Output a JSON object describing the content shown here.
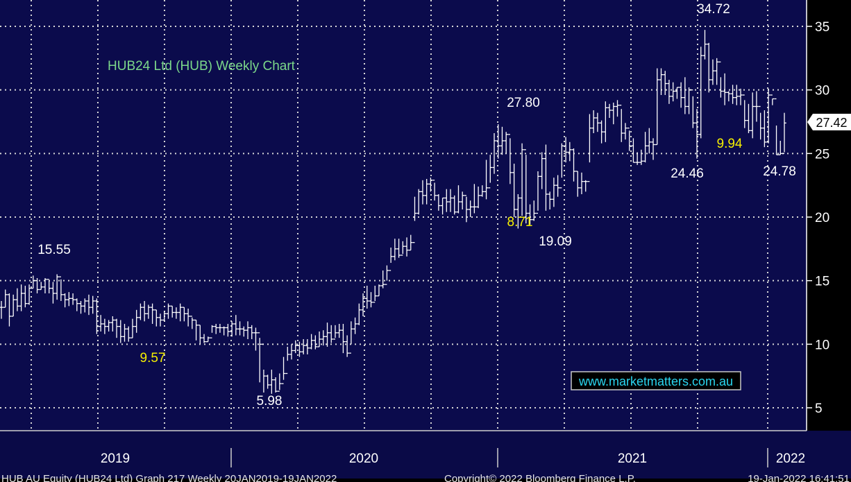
{
  "chart_data": {
    "type": "ohlc",
    "title": "HUB24 Ltd (HUB) Weekly Chart",
    "watermark": "www.marketmatters.com.au",
    "footer_left": "HUB AU Equity (HUB24 Ltd) Graph 217 Weekly 20JAN2019-19JAN2022",
    "footer_mid": "Copyright© 2022 Bloomberg Finance L.P.",
    "footer_right": "19-Jan-2022 16:41:51",
    "y_axis": {
      "min": 3.5,
      "max": 36.5,
      "ticks": [
        5,
        10,
        15,
        20,
        25,
        30,
        35
      ],
      "side": "right"
    },
    "x_axis": {
      "labels": [
        "2019",
        "2020",
        "2021",
        "2022"
      ]
    },
    "last_price": "27.42",
    "annotations": [
      {
        "text": "15.55",
        "color": "white"
      },
      {
        "text": "9.57",
        "color": "yellow"
      },
      {
        "text": "5.98",
        "color": "white"
      },
      {
        "text": "27.80",
        "color": "white"
      },
      {
        "text": "8.71",
        "color": "yellow"
      },
      {
        "text": "19.09",
        "color": "white"
      },
      {
        "text": "24.46",
        "color": "white"
      },
      {
        "text": "34.72",
        "color": "white"
      },
      {
        "text": "9.94",
        "color": "yellow"
      },
      {
        "text": "24.78",
        "color": "white"
      }
    ],
    "closes": [
      12.9,
      13.9,
      12.2,
      13.5,
      13.0,
      14.0,
      13.2,
      14.4,
      15.0,
      14.3,
      14.5,
      15.1,
      14.4,
      14.0,
      15.3,
      13.9,
      13.5,
      13.6,
      13.5,
      13.2,
      13.0,
      13.4,
      12.9,
      13.4,
      11.4,
      11.6,
      11.4,
      11.7,
      11.9,
      11.4,
      10.6,
      11.2,
      10.5,
      11.4,
      12.1,
      12.9,
      12.4,
      12.9,
      12.7,
      12.1,
      11.9,
      12.4,
      13.0,
      12.5,
      12.5,
      12.9,
      12.4,
      12.2,
      11.9,
      11.5,
      10.5,
      10.2,
      10.5,
      11.4,
      11.3,
      11.3,
      11.3,
      11.0,
      11.6,
      11.2,
      11.2,
      11.1,
      11.3,
      10.9,
      10.9,
      10.0,
      7.5,
      6.8,
      7.2,
      6.3,
      6.9,
      7.7,
      9.2,
      9.5,
      9.9,
      9.4,
      9.9,
      9.7,
      10.3,
      9.8,
      10.4,
      10.6,
      10.9,
      10.4,
      10.9,
      11.1,
      10.2,
      9.3,
      11.2,
      11.6,
      12.7,
      13.6,
      13.4,
      13.3,
      13.8,
      14.6,
      14.7,
      15.8,
      16.9,
      17.5,
      17.0,
      17.7,
      17.4,
      18.0,
      20.3,
      22.0,
      21.7,
      22.6,
      22.9,
      21.7,
      20.9,
      21.5,
      21.2,
      21.5,
      20.4,
      21.2,
      21.7,
      20.6,
      20.8,
      20.8,
      21.7,
      22.0,
      22.3,
      23.9,
      26.0,
      25.6,
      26.0,
      26.5,
      23.5,
      20.6,
      21.5,
      25.3,
      20.3,
      19.8,
      20.3,
      23.2,
      24.6,
      21.8,
      21.4,
      22.5,
      22.3,
      25.6,
      25.1,
      25.3,
      23.6,
      22.3,
      22.8,
      22.8,
      27.0,
      27.8,
      27.4,
      26.7,
      28.6,
      28.4,
      28.7,
      28.8,
      26.6,
      27.0,
      25.6,
      24.3,
      24.3,
      24.4,
      25.6,
      25.9,
      25.7,
      30.8,
      31.2,
      30.5,
      29.5,
      29.9,
      30.2,
      29.4,
      28.7,
      30.0,
      27.4,
      26.5,
      32.7,
      33.6,
      30.8,
      31.5,
      32.2,
      29.9,
      29.8,
      29.7,
      29.4,
      29.5,
      29.6,
      27.6,
      26.8,
      28.7,
      28.7,
      27.0,
      25.9,
      29.6,
      29.3,
      24.9,
      25.0,
      27.4
    ],
    "lows": [
      12.0,
      12.9,
      11.4,
      12.2,
      12.6,
      12.6,
      12.9,
      13.1,
      14.4,
      14.0,
      14.3,
      14.0,
      14.0,
      13.2,
      13.5,
      13.4,
      12.9,
      13.0,
      13.1,
      12.6,
      12.4,
      12.5,
      12.3,
      12.4,
      10.8,
      11.0,
      10.8,
      11.0,
      11.0,
      10.5,
      10.1,
      10.2,
      10.2,
      10.5,
      10.9,
      11.9,
      11.8,
      12.0,
      11.6,
      11.4,
      11.4,
      11.8,
      12.0,
      12.1,
      12.0,
      11.8,
      11.8,
      11.4,
      11.2,
      10.3,
      10.0,
      10.1,
      10.2,
      10.9,
      10.8,
      10.9,
      10.7,
      10.6,
      10.6,
      10.7,
      10.7,
      10.6,
      10.4,
      10.4,
      9.5,
      7.0,
      6.2,
      6.5,
      6.1,
      6.2,
      6.4,
      7.2,
      8.7,
      8.8,
      9.3,
      9.0,
      9.2,
      9.2,
      9.6,
      9.6,
      9.8,
      9.9,
      9.8,
      10.1,
      10.5,
      10.5,
      9.3,
      9.0,
      10.0,
      10.8,
      11.5,
      12.2,
      12.8,
      12.9,
      13.4,
      13.8,
      14.4,
      15.0,
      16.4,
      16.6,
      16.8,
      17.1,
      16.9,
      17.4,
      19.7,
      20.2,
      21.0,
      21.0,
      22.0,
      21.3,
      20.5,
      20.2,
      20.4,
      20.4,
      20.2,
      20.3,
      20.6,
      19.6,
      20.0,
      20.3,
      20.7,
      21.6,
      21.4,
      22.7,
      23.4,
      24.6,
      24.9,
      25.0,
      22.6,
      20.0,
      19.1,
      20.1,
      19.5,
      19.4,
      19.7,
      20.5,
      22.2,
      20.5,
      20.6,
      20.8,
      21.6,
      23.1,
      24.3,
      24.4,
      22.8,
      21.6,
      21.8,
      22.0,
      24.3,
      26.6,
      26.7,
      25.8,
      25.9,
      27.8,
      27.3,
      27.9,
      25.9,
      26.1,
      25.2,
      24.3,
      24.1,
      24.1,
      24.3,
      25.0,
      24.5,
      25.7,
      29.6,
      29.6,
      28.9,
      29.1,
      29.3,
      28.6,
      28.1,
      28.1,
      27.0,
      24.6,
      26.2,
      32.4,
      29.8,
      30.4,
      30.4,
      29.4,
      28.8,
      29.1,
      28.9,
      28.8,
      28.8,
      27.0,
      26.6,
      26.2,
      27.5,
      26.1,
      25.5,
      25.8,
      28.8,
      24.9,
      24.9,
      25.1
    ],
    "highs": [
      13.4,
      14.3,
      14.0,
      13.9,
      14.4,
      14.7,
      14.6,
      14.7,
      15.4,
      15.2,
      14.9,
      15.2,
      15.0,
      14.9,
      15.5,
      15.1,
      14.0,
      14.1,
      14.0,
      13.6,
      13.4,
      13.6,
      13.9,
      13.8,
      13.6,
      12.3,
      12.0,
      11.9,
      12.2,
      12.0,
      11.9,
      11.6,
      11.4,
      12.0,
      12.7,
      13.2,
      13.4,
      13.1,
      13.2,
      12.7,
      12.4,
      12.6,
      13.2,
      13.0,
      12.9,
      13.2,
      12.9,
      12.8,
      12.1,
      11.9,
      11.5,
      10.8,
      10.6,
      11.5,
      11.6,
      11.6,
      11.4,
      11.6,
      11.8,
      12.3,
      11.8,
      11.4,
      11.8,
      11.5,
      11.3,
      10.5,
      8.0,
      7.6,
      8.0,
      7.4,
      7.7,
      9.0,
      9.8,
      10.0,
      10.3,
      10.2,
      10.4,
      10.4,
      10.8,
      10.7,
      11.0,
      11.1,
      11.7,
      11.5,
      11.5,
      11.6,
      11.6,
      10.7,
      11.8,
      12.1,
      13.2,
      14.0,
      14.6,
      14.1,
      14.6,
      14.7,
      15.8,
      16.2,
      17.6,
      18.3,
      18.3,
      18.1,
      18.4,
      18.6,
      21.6,
      22.2,
      22.9,
      23.0,
      23.1,
      22.7,
      21.8,
      21.5,
      22.2,
      22.2,
      21.7,
      22.5,
      22.0,
      21.6,
      21.3,
      22.6,
      22.4,
      22.5,
      24.5,
      24.9,
      26.6,
      27.3,
      27.1,
      26.7,
      26.2,
      24.2,
      21.8,
      25.8,
      24.9,
      21.0,
      21.3,
      23.6,
      25.1,
      25.7,
      22.0,
      23.1,
      23.3,
      25.8,
      26.3,
      25.9,
      25.4,
      23.6,
      23.5,
      22.9,
      28.1,
      28.4,
      28.2,
      27.6,
      29.1,
      28.9,
      29.0,
      29.2,
      28.5,
      27.4,
      26.8,
      26.2,
      25.1,
      25.3,
      26.7,
      27.0,
      26.2,
      31.7,
      31.7,
      31.5,
      30.8,
      30.6,
      30.2,
      30.6,
      31.0,
      30.2,
      29.5,
      28.5,
      33.4,
      34.72,
      33.7,
      32.4,
      32.5,
      31.0,
      31.3,
      29.9,
      30.4,
      30.4,
      30.1,
      29.2,
      28.9,
      29.8,
      29.9,
      28.2,
      28.4,
      30.1,
      29.3,
      27.2,
      26.0,
      28.2
    ]
  }
}
